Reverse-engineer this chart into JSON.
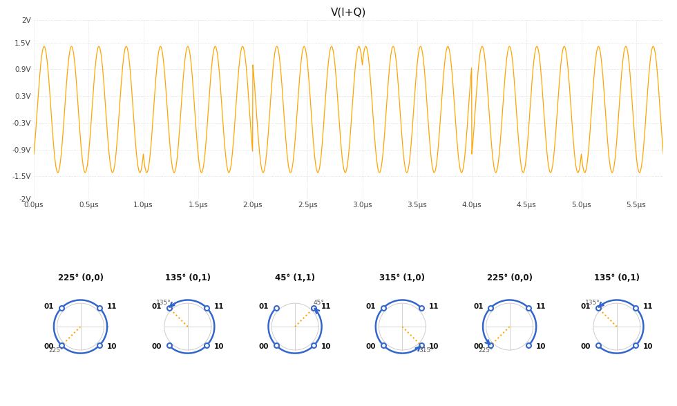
{
  "title": "V(I+Q)",
  "waveform_color": "#FFA500",
  "bg_color": "#ffffff",
  "grid_color": "#d8d8d8",
  "ylim": [
    -2,
    2
  ],
  "xlim_max": 5.75e-06,
  "yticks": [
    -2,
    -1.5,
    -0.9,
    -0.3,
    0.3,
    0.9,
    1.5,
    2
  ],
  "ytick_labels": [
    "-2V",
    "-1.5V",
    "-0.9V",
    "-0.3V",
    "0.3V",
    "0.9V",
    "1.5V",
    "2V"
  ],
  "xtick_vals": [
    0,
    5e-07,
    1e-06,
    1.5e-06,
    2e-06,
    2.5e-06,
    3e-06,
    3.5e-06,
    4e-06,
    4.5e-06,
    5e-06,
    5.5e-06
  ],
  "xtick_labels": [
    "0.0μs",
    "0.5μs",
    "1.0μs",
    "1.5μs",
    "2.0μs",
    "2.5μs",
    "3.0μs",
    "3.5μs",
    "4.0μs",
    "4.5μs",
    "5.0μs",
    "5.5μs"
  ],
  "carrier_freq": 4000000.0,
  "symbol_rate": 1000000.0,
  "symbols": [
    225,
    135,
    45,
    315,
    225,
    135
  ],
  "symbol_labels": [
    "225° (0,0)",
    "135° (0,1)",
    "45° (1,1)",
    "315° (1,0)",
    "225° (0,0)",
    "135° (0,1)"
  ],
  "qpsk_angles": [
    135,
    45,
    315,
    225
  ],
  "qpsk_labels": [
    "01",
    "11",
    "10",
    "00"
  ],
  "constellation_color": "#3366cc",
  "arrow_color": "#FFA500",
  "circle_color": "#cccccc",
  "prev_angles": [
    null,
    225,
    135,
    45,
    315,
    225
  ]
}
